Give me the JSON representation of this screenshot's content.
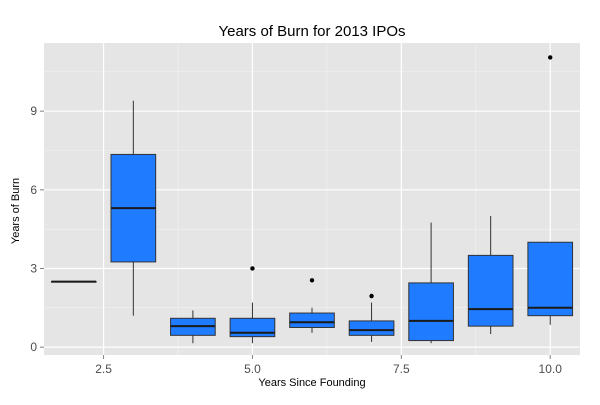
{
  "chart_data": {
    "type": "boxplot",
    "title": "Years of Burn for 2013 IPOs",
    "xlabel": "Years Since Founding",
    "ylabel": "Years of Burn",
    "xlim": [
      1.5,
      10.5
    ],
    "ylim": [
      -0.3,
      11.6
    ],
    "x_ticks": [
      2.5,
      5.0,
      7.5,
      10.0
    ],
    "x_tick_labels": [
      "2.5",
      "5.0",
      "7.5",
      "10.0"
    ],
    "y_ticks": [
      0,
      3,
      6,
      9
    ],
    "y_tick_labels": [
      "0",
      "3",
      "6",
      "9"
    ],
    "grid": true,
    "box_color": "#1f7bff",
    "panel_color": "#e5e5e5",
    "boxes": [
      {
        "x": 2,
        "whisker_low": 2.5,
        "q1": 2.5,
        "median": 2.5,
        "q3": 2.5,
        "whisker_high": 2.5,
        "outliers": []
      },
      {
        "x": 3,
        "whisker_low": 1.2,
        "q1": 3.25,
        "median": 5.3,
        "q3": 7.35,
        "whisker_high": 9.4,
        "outliers": []
      },
      {
        "x": 4,
        "whisker_low": 0.15,
        "q1": 0.45,
        "median": 0.8,
        "q3": 1.1,
        "whisker_high": 1.4,
        "outliers": []
      },
      {
        "x": 5,
        "whisker_low": 0.15,
        "q1": 0.4,
        "median": 0.55,
        "q3": 1.1,
        "whisker_high": 1.7,
        "outliers": [
          3.0
        ]
      },
      {
        "x": 6,
        "whisker_low": 0.55,
        "q1": 0.75,
        "median": 0.95,
        "q3": 1.3,
        "whisker_high": 1.5,
        "outliers": [
          2.55
        ]
      },
      {
        "x": 7,
        "whisker_low": 0.2,
        "q1": 0.45,
        "median": 0.65,
        "q3": 1.0,
        "whisker_high": 1.7,
        "outliers": [
          1.95
        ]
      },
      {
        "x": 8,
        "whisker_low": 0.15,
        "q1": 0.25,
        "median": 1.0,
        "q3": 2.45,
        "whisker_high": 4.75,
        "outliers": []
      },
      {
        "x": 9,
        "whisker_low": 0.5,
        "q1": 0.8,
        "median": 1.45,
        "q3": 3.5,
        "whisker_high": 5.0,
        "outliers": []
      },
      {
        "x": 10,
        "whisker_low": 0.85,
        "q1": 1.2,
        "median": 1.5,
        "q3": 4.0,
        "whisker_high": 4.0,
        "outliers": [
          11.05
        ]
      }
    ]
  }
}
